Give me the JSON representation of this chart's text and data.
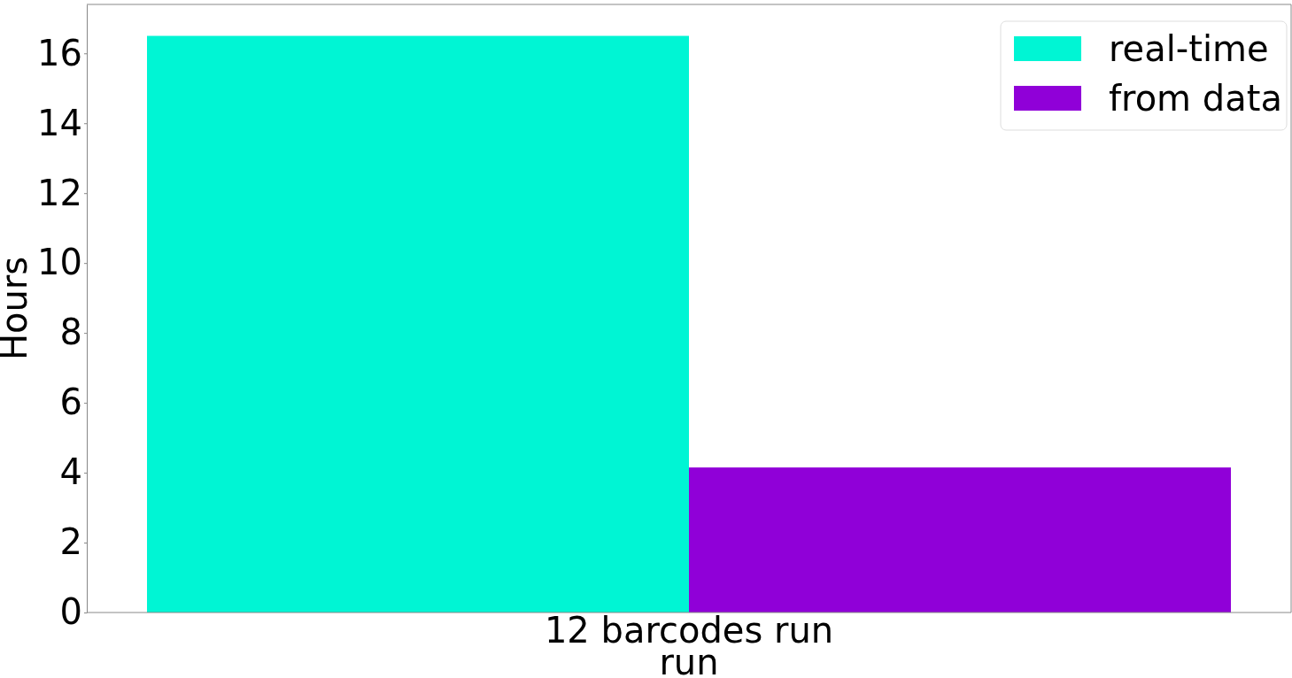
{
  "chart_data": {
    "type": "bar",
    "categories": [
      "12 barcodes run"
    ],
    "xlabel": "run",
    "ylabel": "Hours",
    "series": [
      {
        "name": "real-time",
        "color": "#00f5d4",
        "values": [
          16.5
        ]
      },
      {
        "name": "from data",
        "color": "#9000d8",
        "values": [
          4.15
        ]
      }
    ],
    "ylim": [
      0,
      17.4
    ],
    "yticks": [
      0,
      2,
      4,
      6,
      8,
      10,
      12,
      14,
      16
    ],
    "grid": false,
    "legend": "top right"
  }
}
